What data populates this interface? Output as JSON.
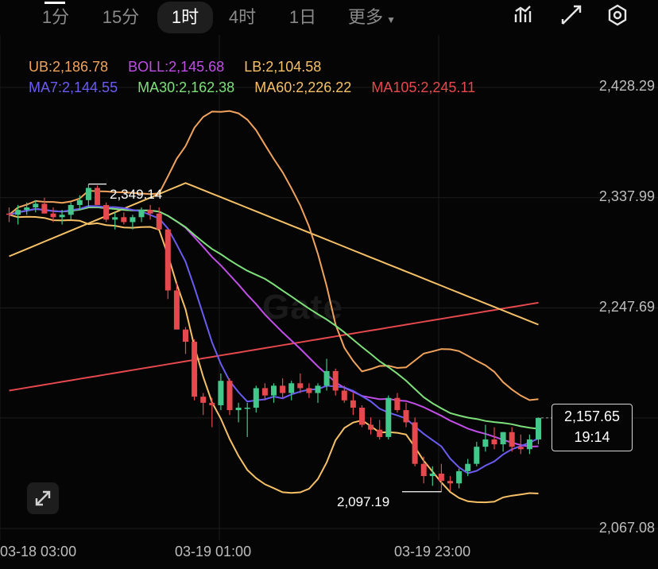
{
  "tabs": [
    {
      "label": "1分",
      "active": false
    },
    {
      "label": "15分",
      "active": false
    },
    {
      "label": "1时",
      "active": true
    },
    {
      "label": "4时",
      "active": false
    },
    {
      "label": "1日",
      "active": false
    },
    {
      "label": "更多",
      "active": false
    }
  ],
  "top_icons": [
    "indicator-icon",
    "draw-icon",
    "settings-icon"
  ],
  "legend": {
    "ub": "UB:2,186.78",
    "boll": "BOLL:2,145.68",
    "lb": "LB:2,104.58",
    "ma7": "MA7:2,144.55",
    "ma30": "MA30:2,162.38",
    "ma60": "MA60:2,226.22",
    "ma105": "MA105:2,245.11"
  },
  "colors": {
    "ub": "#f0a35c",
    "boll": "#c04ee6",
    "lb": "#f5c066",
    "ma7": "#6a5cf0",
    "ma30": "#7ee07a",
    "ma60": "#f5c066",
    "ma105": "#e5484d",
    "up": "#43c78b",
    "down": "#e5484d"
  },
  "price_axis": [
    "2,428.29",
    "2,337.99",
    "2,247.69",
    "2,157.65",
    "2,067.08"
  ],
  "time_axis": [
    "03-18 03:00",
    "03-19 01:00",
    "03-19 23:00"
  ],
  "high_label": "2,349.14",
  "low_label": "2,097.19",
  "current_price": {
    "price": "2,157.65",
    "countdown": "19:14"
  },
  "watermark": "Gate",
  "chart_data": {
    "type": "candlestick",
    "ylim": [
      2067.08,
      2428.29
    ],
    "candles": [
      [
        2325,
        2330,
        2318,
        2324
      ],
      [
        2324,
        2332,
        2316,
        2328
      ],
      [
        2328,
        2334,
        2324,
        2330
      ],
      [
        2330,
        2336,
        2326,
        2333
      ],
      [
        2333,
        2338,
        2328,
        2325
      ],
      [
        2325,
        2330,
        2318,
        2322
      ],
      [
        2322,
        2328,
        2316,
        2324
      ],
      [
        2324,
        2334,
        2320,
        2332
      ],
      [
        2332,
        2340,
        2328,
        2336
      ],
      [
        2336,
        2349,
        2330,
        2346
      ],
      [
        2346,
        2348,
        2332,
        2332
      ],
      [
        2332,
        2334,
        2318,
        2320
      ],
      [
        2320,
        2326,
        2312,
        2322
      ],
      [
        2322,
        2326,
        2316,
        2318
      ],
      [
        2318,
        2324,
        2312,
        2322
      ],
      [
        2322,
        2330,
        2318,
        2328
      ],
      [
        2328,
        2332,
        2320,
        2325
      ],
      [
        2325,
        2330,
        2314,
        2312
      ],
      [
        2312,
        2312,
        2255,
        2262
      ],
      [
        2262,
        2268,
        2232,
        2230
      ],
      [
        2230,
        2232,
        2210,
        2220
      ],
      [
        2220,
        2222,
        2172,
        2175
      ],
      [
        2175,
        2178,
        2160,
        2170
      ],
      [
        2170,
        2174,
        2150,
        2168
      ],
      [
        2168,
        2194,
        2164,
        2188
      ],
      [
        2188,
        2190,
        2160,
        2164
      ],
      [
        2164,
        2170,
        2154,
        2166
      ],
      [
        2166,
        2170,
        2142,
        2166
      ],
      [
        2166,
        2184,
        2162,
        2182
      ],
      [
        2182,
        2186,
        2172,
        2176
      ],
      [
        2176,
        2186,
        2170,
        2184
      ],
      [
        2184,
        2190,
        2174,
        2178
      ],
      [
        2178,
        2188,
        2172,
        2186
      ],
      [
        2186,
        2194,
        2178,
        2182
      ],
      [
        2182,
        2186,
        2174,
        2178
      ],
      [
        2178,
        2186,
        2170,
        2184
      ],
      [
        2184,
        2206,
        2180,
        2196
      ],
      [
        2196,
        2198,
        2176,
        2180
      ],
      [
        2180,
        2184,
        2170,
        2172
      ],
      [
        2172,
        2178,
        2160,
        2166
      ],
      [
        2166,
        2168,
        2150,
        2152
      ],
      [
        2152,
        2158,
        2144,
        2148
      ],
      [
        2148,
        2156,
        2140,
        2142
      ],
      [
        2142,
        2176,
        2140,
        2174
      ],
      [
        2174,
        2178,
        2162,
        2164
      ],
      [
        2164,
        2170,
        2150,
        2154
      ],
      [
        2154,
        2158,
        2118,
        2120
      ],
      [
        2120,
        2126,
        2104,
        2110
      ],
      [
        2110,
        2118,
        2102,
        2112
      ],
      [
        2112,
        2120,
        2097,
        2106
      ],
      [
        2106,
        2110,
        2098,
        2104
      ],
      [
        2104,
        2116,
        2100,
        2114
      ],
      [
        2114,
        2124,
        2110,
        2120
      ],
      [
        2120,
        2138,
        2118,
        2134
      ],
      [
        2134,
        2152,
        2130,
        2140
      ],
      [
        2140,
        2150,
        2132,
        2136
      ],
      [
        2136,
        2146,
        2130,
        2146
      ],
      [
        2146,
        2150,
        2130,
        2134
      ],
      [
        2134,
        2144,
        2128,
        2132
      ],
      [
        2132,
        2144,
        2128,
        2140
      ],
      [
        2140,
        2158,
        2136,
        2157.65
      ]
    ]
  }
}
